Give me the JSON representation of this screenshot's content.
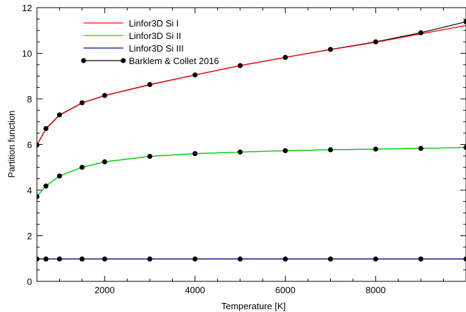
{
  "chart_data": {
    "type": "line",
    "title": "",
    "xlabel": "Temperature [K]",
    "ylabel": "Partition function",
    "xlim": [
      500,
      10000
    ],
    "ylim": [
      0,
      12
    ],
    "x_ticks": [
      2000,
      4000,
      6000,
      8000
    ],
    "y_ticks": [
      0,
      2,
      4,
      6,
      8,
      10,
      12
    ],
    "grid": false,
    "legend_position": "top-left",
    "series": [
      {
        "name": "Linfor3D  Si I",
        "color": "#ff0000",
        "x": [
          500,
          700,
          1000,
          1500,
          2000,
          3000,
          4000,
          5000,
          6000,
          7000,
          8000,
          9000,
          10000
        ],
        "y": [
          5.98,
          6.68,
          7.28,
          7.82,
          8.14,
          8.62,
          9.05,
          9.46,
          9.82,
          10.16,
          10.48,
          10.85,
          11.22
        ]
      },
      {
        "name": "Linfor3D  Si II",
        "color": "#00dd00",
        "x": [
          500,
          700,
          1000,
          1500,
          2000,
          3000,
          4000,
          5000,
          6000,
          7000,
          8000,
          9000,
          10000
        ],
        "y": [
          3.72,
          4.18,
          4.62,
          5.0,
          5.24,
          5.48,
          5.6,
          5.67,
          5.73,
          5.77,
          5.8,
          5.83,
          5.87
        ]
      },
      {
        "name": "Linfor3D  Si III",
        "color": "#0000aa",
        "x": [
          500,
          700,
          1000,
          1500,
          2000,
          3000,
          4000,
          5000,
          6000,
          7000,
          8000,
          9000,
          10000
        ],
        "y": [
          0.98,
          0.98,
          0.98,
          0.98,
          0.98,
          0.98,
          0.98,
          0.98,
          0.98,
          0.98,
          0.98,
          0.98,
          0.98
        ]
      },
      {
        "name": "Barklem & Collet 2016",
        "color": "#000000",
        "marker": "circle",
        "sets": [
          {
            "x": [
              500,
              700,
              1000,
              1500,
              2000,
              3000,
              4000,
              5000,
              6000,
              7000,
              8000,
              9000,
              10000
            ],
            "y": [
              5.98,
              6.7,
              7.3,
              7.83,
              8.15,
              8.63,
              9.05,
              9.46,
              9.82,
              10.17,
              10.5,
              10.9,
              11.38
            ]
          },
          {
            "x": [
              500,
              700,
              1000,
              1500,
              2000,
              3000,
              4000,
              5000,
              6000,
              7000,
              8000,
              9000,
              10000
            ],
            "y": [
              3.72,
              4.18,
              4.62,
              5.0,
              5.24,
              5.48,
              5.6,
              5.67,
              5.73,
              5.77,
              5.8,
              5.83,
              5.87
            ]
          },
          {
            "x": [
              500,
              700,
              1000,
              1500,
              2000,
              3000,
              4000,
              5000,
              6000,
              7000,
              8000,
              9000,
              10000
            ],
            "y": [
              0.98,
              0.98,
              0.98,
              0.98,
              0.98,
              0.98,
              0.98,
              0.98,
              0.98,
              0.98,
              0.98,
              0.98,
              0.98
            ]
          }
        ]
      }
    ]
  }
}
